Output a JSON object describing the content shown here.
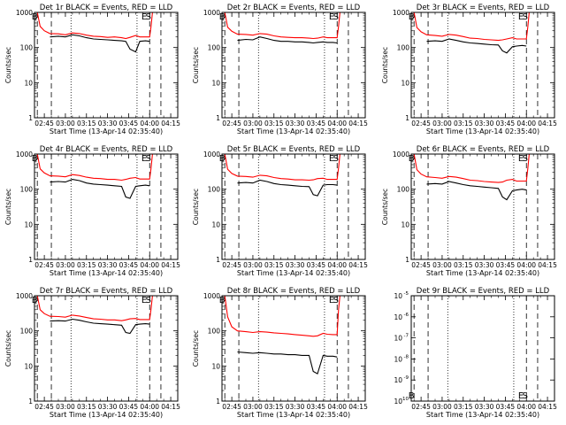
{
  "figure": {
    "xlabel": "Start Time (13-Apr-14 02:35:40)",
    "ylabel": "Counts/sec",
    "x_ticks": [
      "02:45",
      "03:00",
      "03:15",
      "03:30",
      "03:45",
      "04:00",
      "04:15"
    ],
    "y_ticks": [
      "1",
      "10",
      "100",
      "1000"
    ],
    "colors": {
      "events": "#000000",
      "lld": "#ff0000",
      "background": "#ffffff"
    }
  },
  "chart_data": [
    {
      "type": "line",
      "title": "Det 1r BLACK = Events, RED = LLD",
      "xlabel": "Start Time (13-Apr-14 02:35:40)",
      "ylabel": "Counts/sec",
      "yscale": "log",
      "ylim": [
        1,
        1000
      ],
      "x": [
        "02:40",
        "02:42",
        "02:45",
        "02:49",
        "02:55",
        "03:00",
        "03:05",
        "03:10",
        "03:15",
        "03:20",
        "03:25",
        "03:30",
        "03:35",
        "03:40",
        "03:43",
        "03:46",
        "03:50",
        "03:53",
        "03:57",
        "04:00",
        "04:01",
        "04:02"
      ],
      "series": [
        {
          "name": "BLACK = Events",
          "color": "#000000",
          "values": [
            null,
            null,
            null,
            200,
            210,
            200,
            230,
            215,
            190,
            175,
            170,
            165,
            160,
            155,
            150,
            90,
            75,
            150,
            155,
            150,
            null,
            null
          ]
        },
        {
          "name": "RED = LLD",
          "color": "#ff0000",
          "values": [
            1000,
            400,
            300,
            250,
            245,
            230,
            260,
            250,
            225,
            210,
            205,
            195,
            200,
            190,
            180,
            195,
            220,
            200,
            200,
            200,
            400,
            1000
          ]
        }
      ],
      "markers": [
        {
          "label": "B",
          "x": "02:40"
        },
        {
          "label": "E",
          "x": "03:58"
        },
        {
          "label": "S",
          "x": "04:01"
        }
      ]
    },
    {
      "type": "line",
      "title": "Det 2r BLACK = Events, RED = LLD",
      "xlabel": "Start Time (13-Apr-14 02:35:40)",
      "ylabel": "Counts/sec",
      "yscale": "log",
      "ylim": [
        1,
        1000
      ],
      "x": [
        "02:40",
        "02:42",
        "02:45",
        "02:49",
        "02:55",
        "03:00",
        "03:05",
        "03:10",
        "03:15",
        "03:20",
        "03:25",
        "03:30",
        "03:35",
        "03:40",
        "03:43",
        "03:46",
        "03:50",
        "03:53",
        "03:57",
        "04:00",
        "04:01",
        "04:02"
      ],
      "series": [
        {
          "name": "BLACK = Events",
          "color": "#000000",
          "values": [
            null,
            null,
            null,
            160,
            170,
            165,
            200,
            180,
            160,
            150,
            150,
            145,
            145,
            140,
            135,
            140,
            145,
            140,
            140,
            135,
            null,
            null
          ]
        },
        {
          "name": "RED = LLD",
          "color": "#ff0000",
          "values": [
            1000,
            380,
            290,
            240,
            235,
            225,
            250,
            240,
            215,
            200,
            195,
            190,
            190,
            185,
            180,
            185,
            200,
            190,
            190,
            190,
            400,
            1000
          ]
        }
      ],
      "markers": [
        {
          "label": "B",
          "x": "02:40"
        },
        {
          "label": "E",
          "x": "03:58"
        },
        {
          "label": "S",
          "x": "04:01"
        }
      ]
    },
    {
      "type": "line",
      "title": "Det 3r BLACK = Events, RED = LLD",
      "xlabel": "Start Time (13-Apr-14 02:35:40)",
      "ylabel": "Counts/sec",
      "yscale": "log",
      "ylim": [
        1,
        1000
      ],
      "x": [
        "02:40",
        "02:42",
        "02:45",
        "02:49",
        "02:55",
        "03:00",
        "03:05",
        "03:10",
        "03:15",
        "03:20",
        "03:25",
        "03:30",
        "03:35",
        "03:40",
        "03:43",
        "03:46",
        "03:50",
        "03:53",
        "03:57",
        "04:00",
        "04:01",
        "04:02"
      ],
      "series": [
        {
          "name": "BLACK = Events",
          "color": "#000000",
          "values": [
            null,
            null,
            null,
            150,
            155,
            150,
            175,
            160,
            145,
            135,
            130,
            125,
            120,
            118,
            80,
            70,
            105,
            110,
            115,
            110,
            null,
            null
          ]
        },
        {
          "name": "RED = LLD",
          "color": "#ff0000",
          "values": [
            1000,
            370,
            280,
            230,
            220,
            210,
            235,
            225,
            205,
            185,
            180,
            170,
            165,
            160,
            165,
            175,
            190,
            175,
            175,
            175,
            380,
            1000
          ]
        }
      ],
      "markers": [
        {
          "label": "B",
          "x": "02:40"
        },
        {
          "label": "E",
          "x": "03:58"
        },
        {
          "label": "S",
          "x": "04:01"
        }
      ]
    },
    {
      "type": "line",
      "title": "Det 4r BLACK = Events, RED = LLD",
      "xlabel": "Start Time (13-Apr-14 02:35:40)",
      "ylabel": "Counts/sec",
      "yscale": "log",
      "ylim": [
        1,
        1000
      ],
      "x": [
        "02:40",
        "02:42",
        "02:45",
        "02:49",
        "02:55",
        "03:00",
        "03:05",
        "03:10",
        "03:15",
        "03:20",
        "03:25",
        "03:30",
        "03:35",
        "03:40",
        "03:43",
        "03:46",
        "03:50",
        "03:53",
        "03:57",
        "04:00",
        "04:01",
        "04:02"
      ],
      "series": [
        {
          "name": "BLACK = Events",
          "color": "#000000",
          "values": [
            null,
            null,
            null,
            160,
            165,
            160,
            190,
            175,
            150,
            140,
            135,
            130,
            125,
            120,
            60,
            55,
            120,
            125,
            130,
            125,
            null,
            null
          ]
        },
        {
          "name": "RED = LLD",
          "color": "#ff0000",
          "values": [
            1000,
            380,
            290,
            240,
            235,
            225,
            260,
            245,
            220,
            205,
            200,
            190,
            190,
            180,
            190,
            205,
            215,
            195,
            195,
            195,
            400,
            1000
          ]
        }
      ],
      "markers": [
        {
          "label": "B",
          "x": "02:40"
        },
        {
          "label": "E",
          "x": "03:58"
        },
        {
          "label": "S",
          "x": "04:01"
        }
      ]
    },
    {
      "type": "line",
      "title": "Det 5r BLACK = Events, RED = LLD",
      "xlabel": "Start Time (13-Apr-14 02:35:40)",
      "ylabel": "Counts/sec",
      "yscale": "log",
      "ylim": [
        1,
        1000
      ],
      "x": [
        "02:40",
        "02:42",
        "02:45",
        "02:49",
        "02:55",
        "03:00",
        "03:05",
        "03:10",
        "03:15",
        "03:20",
        "03:25",
        "03:30",
        "03:35",
        "03:40",
        "03:43",
        "03:46",
        "03:50",
        "03:53",
        "03:57",
        "04:00",
        "04:01",
        "04:02"
      ],
      "series": [
        {
          "name": "BLACK = Events",
          "color": "#000000",
          "values": [
            null,
            null,
            null,
            150,
            155,
            150,
            180,
            165,
            145,
            135,
            130,
            125,
            120,
            118,
            70,
            65,
            130,
            135,
            135,
            130,
            null,
            null
          ]
        },
        {
          "name": "RED = LLD",
          "color": "#ff0000",
          "values": [
            1000,
            370,
            280,
            235,
            230,
            220,
            250,
            240,
            215,
            200,
            195,
            185,
            185,
            180,
            185,
            200,
            205,
            190,
            190,
            190,
            400,
            1000
          ]
        }
      ],
      "markers": [
        {
          "label": "B",
          "x": "02:40"
        },
        {
          "label": "E",
          "x": "03:58"
        },
        {
          "label": "S",
          "x": "04:01"
        }
      ]
    },
    {
      "type": "line",
      "title": "Det 6r BLACK = Events, RED = LLD",
      "xlabel": "Start Time (13-Apr-14 02:35:40)",
      "ylabel": "Counts/sec",
      "yscale": "log",
      "ylim": [
        1,
        1000
      ],
      "x": [
        "02:40",
        "02:42",
        "02:45",
        "02:49",
        "02:55",
        "03:00",
        "03:05",
        "03:10",
        "03:15",
        "03:20",
        "03:25",
        "03:30",
        "03:35",
        "03:40",
        "03:43",
        "03:46",
        "03:50",
        "03:53",
        "03:57",
        "04:00",
        "04:01",
        "04:02"
      ],
      "series": [
        {
          "name": "BLACK = Events",
          "color": "#000000",
          "values": [
            null,
            null,
            null,
            140,
            145,
            140,
            165,
            150,
            135,
            125,
            120,
            115,
            110,
            105,
            60,
            50,
            90,
            95,
            100,
            95,
            null,
            null
          ]
        },
        {
          "name": "RED = LLD",
          "color": "#ff0000",
          "values": [
            1000,
            360,
            270,
            225,
            215,
            205,
            230,
            220,
            200,
            180,
            175,
            165,
            160,
            155,
            160,
            180,
            190,
            170,
            170,
            170,
            380,
            1000
          ]
        }
      ],
      "markers": [
        {
          "label": "B",
          "x": "02:40"
        },
        {
          "label": "E",
          "x": "03:58"
        },
        {
          "label": "S",
          "x": "04:01"
        }
      ]
    },
    {
      "type": "line",
      "title": "Det 7r BLACK = Events, RED = LLD",
      "xlabel": "Start Time (13-Apr-14 02:35:40)",
      "ylabel": "Counts/sec",
      "yscale": "log",
      "ylim": [
        1,
        1000
      ],
      "x": [
        "02:40",
        "02:42",
        "02:45",
        "02:49",
        "02:55",
        "03:00",
        "03:05",
        "03:10",
        "03:15",
        "03:20",
        "03:25",
        "03:30",
        "03:35",
        "03:40",
        "03:43",
        "03:46",
        "03:50",
        "03:53",
        "03:57",
        "04:00",
        "04:01",
        "04:02"
      ],
      "series": [
        {
          "name": "BLACK = Events",
          "color": "#000000",
          "values": [
            null,
            null,
            null,
            190,
            195,
            190,
            215,
            200,
            180,
            165,
            160,
            155,
            150,
            145,
            90,
            85,
            150,
            155,
            160,
            155,
            null,
            null
          ]
        },
        {
          "name": "RED = LLD",
          "color": "#ff0000",
          "values": [
            1000,
            400,
            310,
            260,
            255,
            245,
            280,
            265,
            240,
            220,
            215,
            205,
            205,
            195,
            205,
            220,
            225,
            210,
            210,
            210,
            420,
            1000
          ]
        }
      ],
      "markers": [
        {
          "label": "B",
          "x": "02:40"
        },
        {
          "label": "E",
          "x": "03:58"
        },
        {
          "label": "S",
          "x": "04:01"
        }
      ]
    },
    {
      "type": "line",
      "title": "Det 8r BLACK = Events, RED = LLD",
      "xlabel": "Start Time (13-Apr-14 02:35:40)",
      "ylabel": "Counts/sec",
      "yscale": "log",
      "ylim": [
        1,
        1000
      ],
      "x": [
        "02:40",
        "02:42",
        "02:45",
        "02:49",
        "02:55",
        "03:00",
        "03:05",
        "03:10",
        "03:15",
        "03:20",
        "03:25",
        "03:30",
        "03:35",
        "03:40",
        "03:43",
        "03:46",
        "03:50",
        "03:53",
        "03:57",
        "04:00",
        "04:01",
        "04:02"
      ],
      "series": [
        {
          "name": "BLACK = Events",
          "color": "#000000",
          "values": [
            null,
            null,
            null,
            25,
            24,
            23,
            24,
            23,
            22,
            22,
            21,
            21,
            20,
            20,
            7,
            6,
            20,
            19,
            19,
            18,
            null,
            null
          ]
        },
        {
          "name": "RED = LLD",
          "color": "#ff0000",
          "values": [
            1000,
            250,
            130,
            100,
            95,
            90,
            95,
            92,
            88,
            85,
            82,
            78,
            75,
            72,
            70,
            72,
            85,
            80,
            78,
            78,
            400,
            1000
          ]
        }
      ],
      "markers": [
        {
          "label": "B",
          "x": "02:40"
        },
        {
          "label": "E",
          "x": "03:58"
        },
        {
          "label": "S",
          "x": "04:01"
        }
      ]
    },
    {
      "type": "line",
      "title": "Det 9r BLACK = Events, RED = LLD",
      "xlabel": "Start Time (13-Apr-14 02:35:40)",
      "ylabel": "",
      "yscale": "log",
      "ylim": [
        1e-10,
        1e-05
      ],
      "y_ticks": [
        "10^-10",
        "10^-9",
        "10^-8",
        "10^-7",
        "10^-6",
        "10^-5"
      ],
      "x": [],
      "series": [],
      "markers": [
        {
          "label": "B",
          "x": "02:40"
        },
        {
          "label": "E",
          "x": "03:58"
        },
        {
          "label": "S",
          "x": "04:01"
        }
      ]
    }
  ]
}
